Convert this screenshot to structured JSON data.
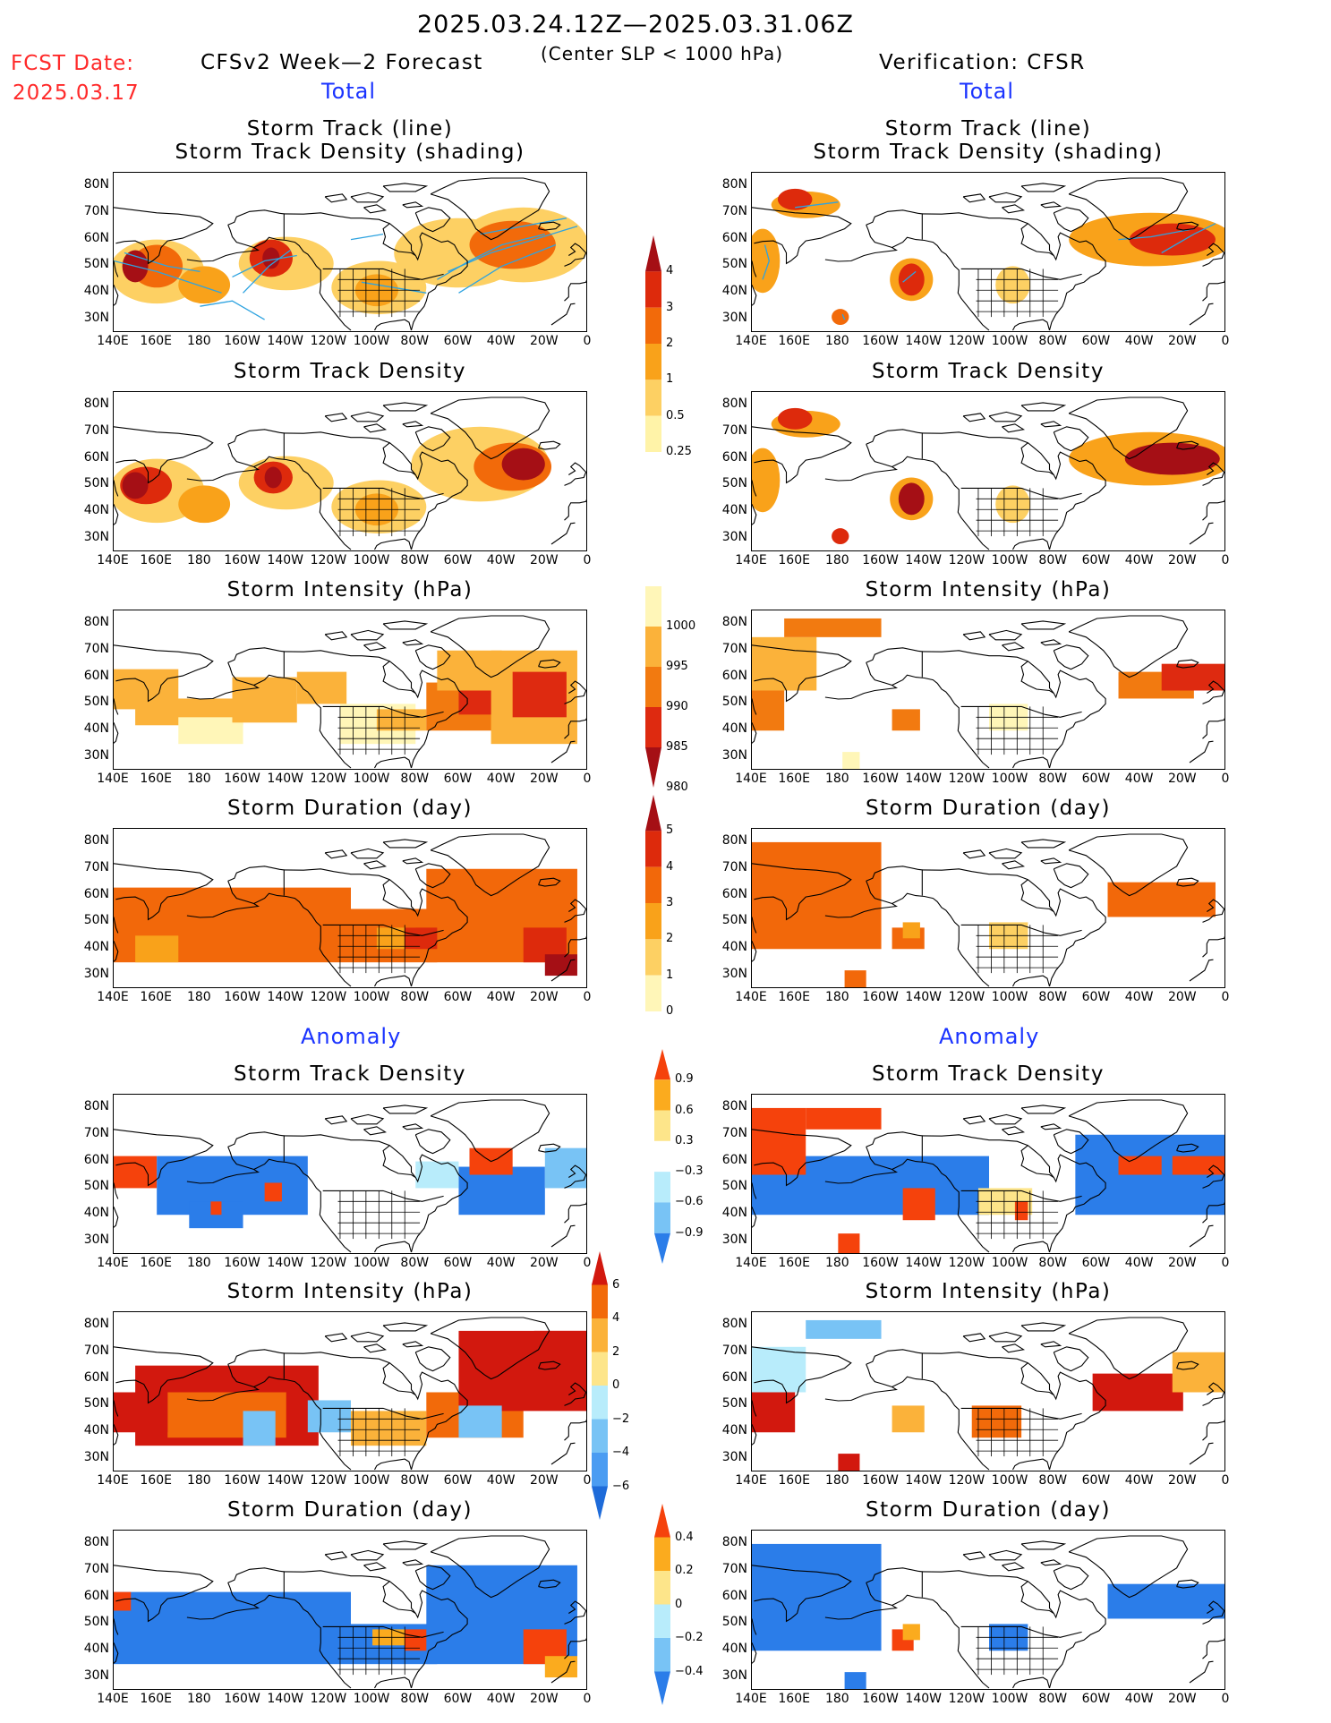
{
  "header": {
    "date_range": "2025.03.24.12Z—2025.03.31.06Z",
    "center_slp": "(Center SLP < 1000 hPa)",
    "fcst_label": "FCST Date:",
    "fcst_date": "2025.03.17",
    "forecast_title": "CFSv2 Week—2 Forecast",
    "verification_title": "Verification: CFSR",
    "total_label": "Total",
    "anomaly_label": "Anomaly"
  },
  "axes": {
    "lat_ticks": [
      "80N",
      "70N",
      "60N",
      "50N",
      "40N",
      "30N"
    ],
    "lon_ticks": [
      "140E",
      "160E",
      "180",
      "160W",
      "140W",
      "120W",
      "100W",
      "80W",
      "60W",
      "40W",
      "20W",
      "0"
    ]
  },
  "panels": [
    {
      "title": "Storm Track (line)",
      "subtitle": "Storm Track Density (shading)"
    },
    {
      "title": "Storm Track Density"
    },
    {
      "title": "Storm Intensity (hPa)"
    },
    {
      "title": "Storm Duration (day)"
    },
    {
      "title": "Storm Track Density"
    },
    {
      "title": "Storm Intensity (hPa)"
    },
    {
      "title": "Storm Duration (day)"
    }
  ],
  "colorbars": {
    "density": {
      "labels": [
        "4",
        "3",
        "2",
        "1",
        "0.5",
        "0.25"
      ],
      "colors": [
        "#a50f15",
        "#dd2a0c",
        "#f26a0a",
        "#f9a21a",
        "#fdd063",
        "#fff3a8"
      ]
    },
    "intensity": {
      "labels": [
        "1000",
        "995",
        "990",
        "985",
        "980"
      ],
      "colors": [
        "#fff6b8",
        "#fbb23a",
        "#f27a10",
        "#de2a10",
        "#a50f15"
      ]
    },
    "duration": {
      "labels": [
        "5",
        "4",
        "3",
        "2",
        "1",
        "0"
      ],
      "colors": [
        "#a50f15",
        "#dd2a0c",
        "#f2680a",
        "#f9a21a",
        "#fdd063",
        "#fff6b8"
      ]
    },
    "density_anom": {
      "labels": [
        "0.9",
        "0.6",
        "0.3",
        "−0.3",
        "−0.6",
        "−0.9"
      ],
      "colors": [
        "#f5420c",
        "#fbab1e",
        "#fde58a",
        "#ffffff",
        "#b8ecfb",
        "#78c3f5",
        "#2b7de9"
      ]
    },
    "intensity_anom": {
      "labels": [
        "6",
        "4",
        "2",
        "0",
        "−2",
        "−4",
        "−6"
      ],
      "colors": [
        "#d2180e",
        "#f26a0a",
        "#fbb23a",
        "#fde58a",
        "#b8ecfb",
        "#78c3f5",
        "#4a9cf2",
        "#1e6bd9"
      ]
    },
    "duration_anom": {
      "labels": [
        "0.4",
        "0.2",
        "0",
        "−0.2",
        "−0.4"
      ],
      "colors": [
        "#f5420c",
        "#fbab1e",
        "#fde58a",
        "#b8ecfb",
        "#78c3f5",
        "#2b7de9"
      ]
    }
  }
}
